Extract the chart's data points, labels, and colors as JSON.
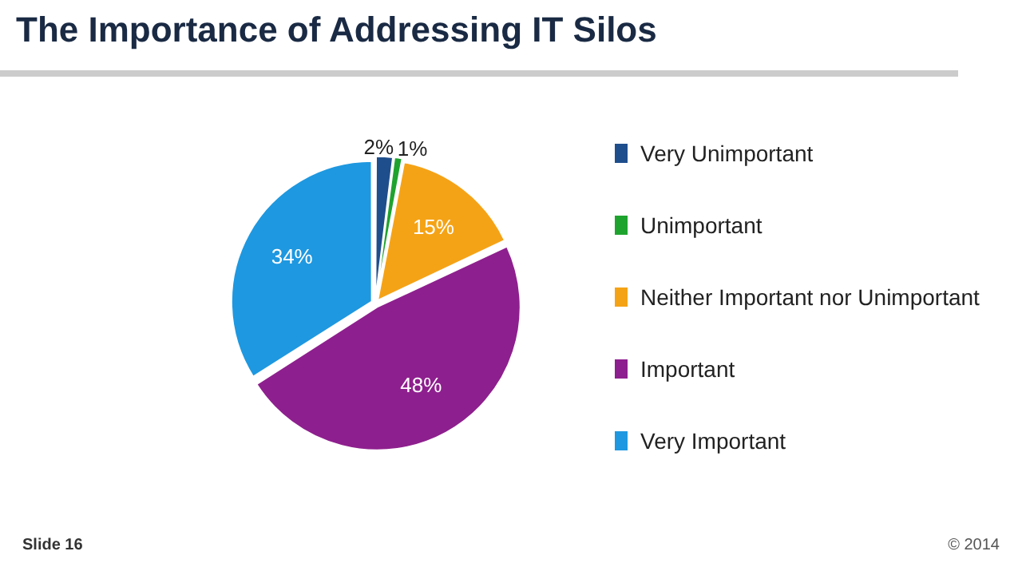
{
  "chart_data": {
    "type": "pie",
    "title": "The Importance of Addressing IT Silos",
    "categories": [
      "Very Unimportant",
      "Unimportant",
      "Neither Important nor Unimportant",
      "Important",
      "Very Important"
    ],
    "values": [
      2,
      1,
      15,
      48,
      34
    ],
    "colors": [
      "#1f4e8c",
      "#1fa32f",
      "#f5a316",
      "#8e1f8e",
      "#1e98e0"
    ],
    "value_labels": [
      "2%",
      "1%",
      "15%",
      "48%",
      "34%"
    ],
    "legend": "right",
    "annotations": [
      "Slide 16",
      "© 2014"
    ]
  }
}
